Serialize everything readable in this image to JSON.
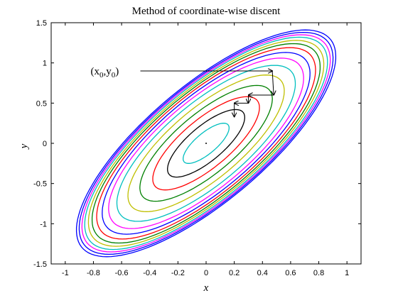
{
  "chart_data": {
    "type": "line",
    "title": "Method of coordinate-wise discent",
    "xlabel": "x",
    "ylabel": "y",
    "xlim": [
      -1.1,
      1.1
    ],
    "ylim": [
      -1.5,
      1.5
    ],
    "xticks": [
      "-1",
      "-0.8",
      "-0.6",
      "-0.4",
      "-0.2",
      "0",
      "0.2",
      "0.4",
      "0.6",
      "0.8",
      "1"
    ],
    "yticks": [
      "1.5",
      "1",
      "0.5",
      "0",
      "-0.5",
      "-1",
      "-1.5"
    ],
    "grid": false,
    "contours": {
      "center": [
        0,
        0
      ],
      "tilt_x_per_y": 0.5,
      "y_extents": [
        0.25,
        0.42,
        0.58,
        0.72,
        0.85,
        0.97,
        1.06,
        1.13,
        1.19,
        1.24,
        1.28,
        1.32,
        1.35,
        1.38,
        1.41
      ],
      "colors": [
        "#00bfbf",
        "#000000",
        "#ff0000",
        "#008000",
        "#bfbf00",
        "#00bfbf",
        "#ff00ff",
        "#0000ff",
        "#ff0000",
        "#008000",
        "#bfbf00",
        "#00bfbf",
        "#ff00ff",
        "#0000ff",
        "#0000ff"
      ]
    },
    "minimum_point": [
      0,
      0
    ],
    "descent_path": {
      "label": "(x",
      "label_sub0": "0",
      "label_comma": ",y",
      "label_sub1": "0",
      "label_close": ")",
      "label_anchor": [
        -0.82,
        0.9
      ],
      "start": [
        0.47,
        0.9
      ],
      "points": [
        [
          0.47,
          0.9
        ],
        [
          0.48,
          0.6
        ],
        [
          0.3,
          0.6
        ],
        [
          0.3,
          0.5
        ],
        [
          0.2,
          0.5
        ],
        [
          0.2,
          0.33
        ]
      ]
    }
  }
}
